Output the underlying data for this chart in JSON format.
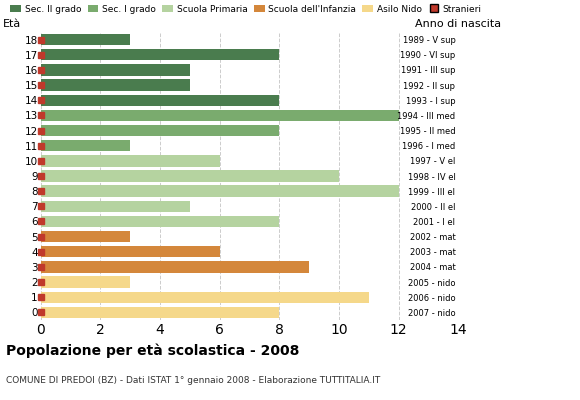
{
  "ages": [
    18,
    17,
    16,
    15,
    14,
    13,
    12,
    11,
    10,
    9,
    8,
    7,
    6,
    5,
    4,
    3,
    2,
    1,
    0
  ],
  "anno_nascita": [
    "1989 - V sup",
    "1990 - VI sup",
    "1991 - III sup",
    "1992 - II sup",
    "1993 - I sup",
    "1994 - III med",
    "1995 - II med",
    "1996 - I med",
    "1997 - V el",
    "1998 - IV el",
    "1999 - III el",
    "2000 - II el",
    "2001 - I el",
    "2002 - mat",
    "2003 - mat",
    "2004 - mat",
    "2005 - nido",
    "2006 - nido",
    "2007 - nido"
  ],
  "values": [
    3,
    8,
    5,
    5,
    8,
    12,
    8,
    3,
    6,
    10,
    12,
    5,
    8,
    3,
    6,
    9,
    3,
    11,
    8
  ],
  "colors": [
    "#4a7c4e",
    "#4a7c4e",
    "#4a7c4e",
    "#4a7c4e",
    "#4a7c4e",
    "#7aab6e",
    "#7aab6e",
    "#7aab6e",
    "#b5d3a0",
    "#b5d3a0",
    "#b5d3a0",
    "#b5d3a0",
    "#b5d3a0",
    "#d4873b",
    "#d4873b",
    "#d4873b",
    "#f5d88a",
    "#f5d88a",
    "#f5d88a"
  ],
  "legend_labels": [
    "Sec. II grado",
    "Sec. I grado",
    "Scuola Primaria",
    "Scuola dell'Infanzia",
    "Asilo Nido",
    "Stranieri"
  ],
  "legend_colors": [
    "#4a7c4e",
    "#7aab6e",
    "#b5d3a0",
    "#d4873b",
    "#f5d88a",
    "#c0392b"
  ],
  "title": "Popolazione per età scolastica - 2008",
  "subtitle": "COMUNE DI PREDOI (BZ) - Dati ISTAT 1° gennaio 2008 - Elaborazione TUTTITALIA.IT",
  "ylabel": "Età",
  "ylabel_right": "Anno di nascita",
  "xlim": [
    0,
    14
  ],
  "xticks": [
    0,
    2,
    4,
    6,
    8,
    10,
    12,
    14
  ],
  "bar_height": 0.75,
  "stranieri_color": "#c0392b",
  "background_color": "#ffffff",
  "grid_color": "#cccccc"
}
